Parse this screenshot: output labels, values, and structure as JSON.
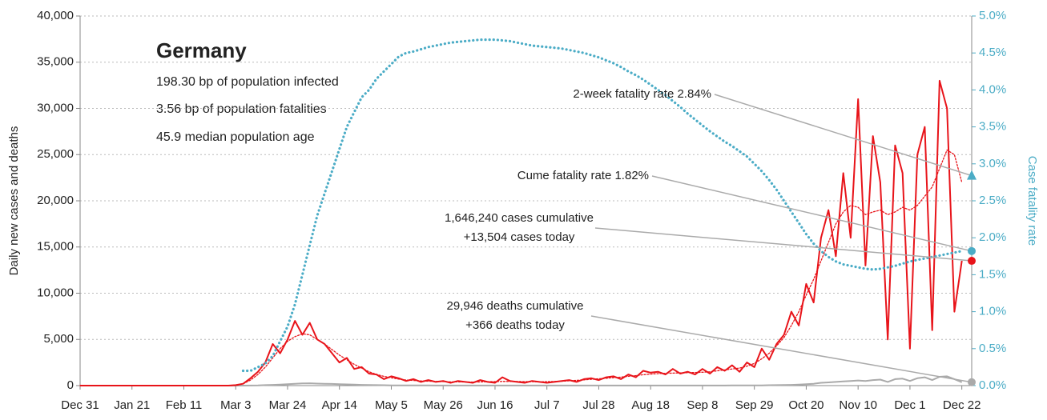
{
  "chart_data": {
    "type": "line",
    "info": {
      "title": "Germany",
      "lines": [
        "198.30 bp of population infected",
        "3.56 bp of population fatalities",
        "45.9 median population age"
      ]
    },
    "ylabel": "Daily new cases and deaths",
    "y2label": "Case fatality rate",
    "xlim": [
      0,
      361
    ],
    "xticks": [
      {
        "value": 0,
        "label": "Dec 31"
      },
      {
        "value": 21,
        "label": "Jan 21"
      },
      {
        "value": 42,
        "label": "Feb 11"
      },
      {
        "value": 63,
        "label": "Mar 3"
      },
      {
        "value": 84,
        "label": "Mar 24"
      },
      {
        "value": 105,
        "label": "Apr 14"
      },
      {
        "value": 126,
        "label": "May 5"
      },
      {
        "value": 147,
        "label": "May 26"
      },
      {
        "value": 168,
        "label": "Jun 16"
      },
      {
        "value": 189,
        "label": "Jul 7"
      },
      {
        "value": 210,
        "label": "Jul 28"
      },
      {
        "value": 231,
        "label": "Aug 18"
      },
      {
        "value": 252,
        "label": "Sep 8"
      },
      {
        "value": 273,
        "label": "Sep 29"
      },
      {
        "value": 294,
        "label": "Oct 20"
      },
      {
        "value": 315,
        "label": "Nov 10"
      },
      {
        "value": 336,
        "label": "Dec 1"
      },
      {
        "value": 357,
        "label": "Dec 22"
      }
    ],
    "ylim": [
      0,
      40000
    ],
    "yticks": [
      0,
      {
        "value": 5000,
        "label": "5,000"
      },
      {
        "value": 10000,
        "label": "10,000"
      },
      {
        "value": 15000,
        "label": "15,000"
      },
      {
        "value": 20000,
        "label": "20,000"
      },
      {
        "value": 25000,
        "label": "25,000"
      },
      {
        "value": 30000,
        "label": "30,000"
      },
      {
        "value": 35000,
        "label": "35,000"
      },
      {
        "value": 40000,
        "label": "40,000"
      }
    ],
    "y2lim": [
      0,
      5
    ],
    "y2ticks": [
      {
        "value": 0,
        "label": "0.0%"
      },
      {
        "value": 0.5,
        "label": "0.5%"
      },
      {
        "value": 1,
        "label": "1.0%"
      },
      {
        "value": 1.5,
        "label": "1.5%"
      },
      {
        "value": 2,
        "label": "2.0%"
      },
      {
        "value": 2.5,
        "label": "2.5%"
      },
      {
        "value": 3,
        "label": "3.0%"
      },
      {
        "value": 3.5,
        "label": "3.5%"
      },
      {
        "value": 4,
        "label": "4.0%"
      },
      {
        "value": 4.5,
        "label": "4.5%"
      },
      {
        "value": 5,
        "label": "5.0%"
      }
    ],
    "grid": true,
    "x": [
      0,
      3,
      6,
      9,
      12,
      15,
      18,
      21,
      24,
      27,
      30,
      33,
      36,
      39,
      42,
      45,
      48,
      51,
      54,
      57,
      60,
      63,
      66,
      69,
      72,
      75,
      78,
      81,
      84,
      87,
      90,
      93,
      96,
      99,
      102,
      105,
      108,
      111,
      114,
      117,
      120,
      123,
      126,
      129,
      132,
      135,
      138,
      141,
      144,
      147,
      150,
      153,
      156,
      159,
      162,
      165,
      168,
      171,
      174,
      177,
      180,
      183,
      186,
      189,
      192,
      195,
      198,
      201,
      204,
      207,
      210,
      213,
      216,
      219,
      222,
      225,
      228,
      231,
      234,
      237,
      240,
      243,
      246,
      249,
      252,
      255,
      258,
      261,
      264,
      267,
      270,
      273,
      276,
      279,
      282,
      285,
      288,
      291,
      294,
      297,
      300,
      303,
      306,
      309,
      312,
      315,
      318,
      321,
      324,
      327,
      330,
      333,
      336,
      339,
      342,
      345,
      348,
      351,
      354,
      357
    ],
    "series": [
      {
        "color": "#aaaaaa",
        "style": "solid",
        "values": [
          0,
          0,
          0,
          0,
          0,
          0,
          0,
          0,
          0,
          0,
          0,
          0,
          0,
          0,
          0,
          0,
          0,
          0,
          0,
          0,
          0,
          0,
          0,
          5,
          20,
          50,
          80,
          100,
          150,
          200,
          230,
          250,
          220,
          200,
          180,
          150,
          130,
          100,
          80,
          60,
          50,
          40,
          30,
          30,
          20,
          20,
          15,
          15,
          10,
          10,
          10,
          10,
          10,
          10,
          10,
          10,
          5,
          5,
          5,
          5,
          5,
          5,
          5,
          5,
          5,
          5,
          5,
          5,
          5,
          5,
          5,
          5,
          5,
          5,
          5,
          10,
          10,
          10,
          10,
          10,
          10,
          10,
          10,
          10,
          10,
          10,
          10,
          10,
          15,
          15,
          20,
          20,
          30,
          40,
          50,
          60,
          80,
          100,
          150,
          200,
          300,
          350,
          400,
          450,
          500,
          550,
          500,
          600,
          650,
          400,
          700,
          750,
          500,
          800,
          900,
          600,
          950,
          1000,
          700,
          366
        ]
      },
      {
        "color": "#e8141a",
        "style": "dotted",
        "values": [
          0,
          0,
          0,
          0,
          0,
          0,
          0,
          0,
          0,
          0,
          0,
          0,
          0,
          0,
          0,
          0,
          0,
          0,
          0,
          0,
          0,
          0,
          200,
          600,
          1200,
          2000,
          3000,
          4000,
          4800,
          5300,
          5600,
          5500,
          5000,
          4500,
          3900,
          3300,
          2800,
          2300,
          1900,
          1500,
          1200,
          1000,
          850,
          700,
          600,
          550,
          500,
          480,
          450,
          430,
          400,
          400,
          390,
          380,
          400,
          420,
          430,
          450,
          450,
          440,
          430,
          420,
          410,
          420,
          450,
          480,
          520,
          560,
          620,
          680,
          740,
          800,
          860,
          920,
          1000,
          1080,
          1180,
          1250,
          1300,
          1330,
          1350,
          1380,
          1400,
          1420,
          1450,
          1500,
          1600,
          1700,
          1800,
          1900,
          2100,
          2400,
          2900,
          3500,
          4300,
          5200,
          6500,
          8000,
          9800,
          11500,
          13500,
          15500,
          17500,
          18800,
          19500,
          19300,
          18500,
          18800,
          19000,
          18500,
          18800,
          19300,
          19000,
          19500,
          20500,
          21500,
          23500,
          25500,
          25000,
          22000
        ]
      },
      {
        "color": "#e8141a",
        "style": "solid",
        "values": [
          0,
          0,
          0,
          0,
          0,
          0,
          0,
          0,
          0,
          0,
          0,
          0,
          0,
          0,
          0,
          0,
          0,
          0,
          0,
          0,
          0,
          50,
          200,
          800,
          1500,
          2500,
          4500,
          3500,
          5000,
          7000,
          5500,
          6800,
          5000,
          4500,
          3500,
          2500,
          3000,
          1800,
          2000,
          1300,
          1200,
          700,
          1000,
          800,
          500,
          700,
          400,
          600,
          400,
          500,
          300,
          500,
          400,
          300,
          600,
          400,
          300,
          900,
          500,
          400,
          300,
          500,
          400,
          300,
          400,
          500,
          600,
          400,
          700,
          800,
          600,
          900,
          1000,
          700,
          1200,
          900,
          1600,
          1400,
          1500,
          1200,
          1800,
          1300,
          1500,
          1200,
          1800,
          1300,
          2000,
          1600,
          2200,
          1500,
          2500,
          2000,
          4000,
          2800,
          4500,
          5500,
          8000,
          6500,
          11000,
          9000,
          16000,
          19000,
          14000,
          23000,
          16000,
          31000,
          13000,
          27000,
          22000,
          5000,
          26000,
          23000,
          4000,
          25000,
          28000,
          6000,
          33000,
          30000,
          8000,
          13504
        ]
      },
      {
        "color": "#4bacc6",
        "style": "dotted",
        "axis": "y2",
        "values": [
          null,
          null,
          null,
          null,
          null,
          null,
          null,
          null,
          null,
          null,
          null,
          null,
          null,
          null,
          null,
          null,
          null,
          null,
          null,
          null,
          null,
          null,
          0.2,
          0.2,
          0.25,
          0.3,
          0.4,
          0.6,
          0.8,
          1.1,
          1.5,
          1.9,
          2.3,
          2.6,
          2.9,
          3.2,
          3.5,
          3.7,
          3.9,
          4.0,
          4.15,
          4.25,
          4.35,
          4.45,
          4.5,
          4.52,
          4.55,
          4.58,
          4.6,
          4.62,
          4.64,
          4.65,
          4.66,
          4.67,
          4.68,
          4.68,
          4.68,
          4.67,
          4.66,
          4.64,
          4.62,
          4.6,
          4.59,
          4.58,
          4.57,
          4.56,
          4.54,
          4.52,
          4.5,
          4.47,
          4.44,
          4.4,
          4.36,
          4.31,
          4.25,
          4.2,
          4.14,
          4.07,
          4.0,
          3.93,
          3.85,
          3.77,
          3.68,
          3.6,
          3.52,
          3.44,
          3.37,
          3.3,
          3.24,
          3.17,
          3.1,
          3.0,
          2.9,
          2.78,
          2.65,
          2.5,
          2.35,
          2.2,
          2.05,
          1.92,
          1.82,
          1.74,
          1.68,
          1.64,
          1.62,
          1.6,
          1.58,
          1.57,
          1.58,
          1.6,
          1.62,
          1.65,
          1.68,
          1.7,
          1.72,
          1.74,
          1.76,
          1.78,
          1.8,
          1.82
        ]
      }
    ],
    "annotations": [
      {
        "text": [
          "2-week fatality rate 2.84%"
        ],
        "value": 2.84,
        "axis": "y2",
        "color": "#4bacc6",
        "marker": "triangle"
      },
      {
        "text": [
          "Cume fatality rate 1.82%"
        ],
        "value": 1.82,
        "axis": "y2",
        "color": "#4bacc6",
        "marker": "circle"
      },
      {
        "text": [
          "1,646,240 cases cumulative",
          "+13,504 cases today"
        ],
        "value": 13504,
        "color": "#e8141a",
        "marker": "circle"
      },
      {
        "text": [
          "29,946 deaths cumulative",
          "+366 deaths today"
        ],
        "value": 366,
        "color": "#aaaaaa",
        "marker": "circle"
      }
    ]
  }
}
